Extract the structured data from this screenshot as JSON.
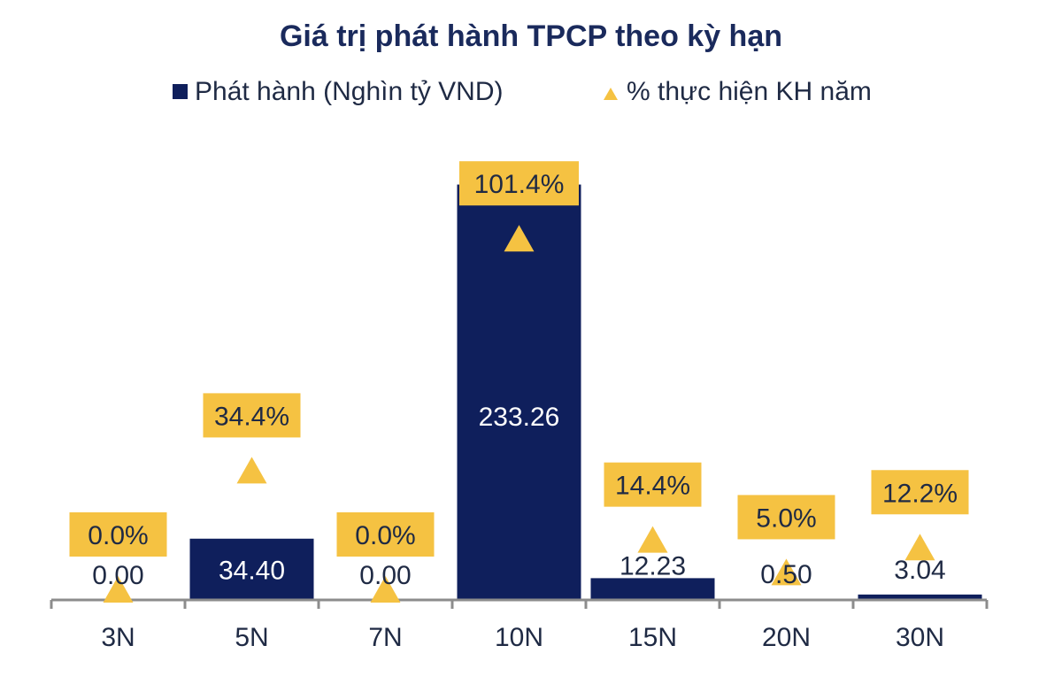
{
  "chart_data": {
    "type": "bar",
    "title": "Giá trị phát hành TPCP theo kỳ hạn",
    "categories": [
      "3N",
      "5N",
      "7N",
      "10N",
      "15N",
      "20N",
      "30N"
    ],
    "series": [
      {
        "name": "Phát hành (Nghìn tỷ VND)",
        "kind": "bar",
        "color": "#0f1f5c",
        "values": [
          0.0,
          34.4,
          0.0,
          233.26,
          12.23,
          0.5,
          3.04
        ],
        "labels": [
          "0.00",
          "34.40",
          "0.00",
          "233.26",
          "12.23",
          "0.50",
          "3.04"
        ]
      },
      {
        "name": "% thực hiện KH năm",
        "kind": "marker-triangle",
        "color": "#f5c242",
        "values": [
          0.0,
          34.4,
          0.0,
          101.4,
          14.4,
          5.0,
          12.2
        ],
        "labels": [
          "0.0%",
          "34.4%",
          "0.0%",
          "101.4%",
          "14.4%",
          "5.0%",
          "12.2%"
        ]
      }
    ],
    "ylim_bar": [
      0,
      240
    ],
    "ylim_pct": [
      0,
      115
    ],
    "legend_position": "top-center",
    "grid": false
  },
  "colors": {
    "title": "#1a2a5c",
    "bar": "#0f1f5c",
    "marker": "#f5c242",
    "label_box": "#f5c242",
    "axis": "#8c8c8c",
    "text_dark": "#1f2a44"
  }
}
